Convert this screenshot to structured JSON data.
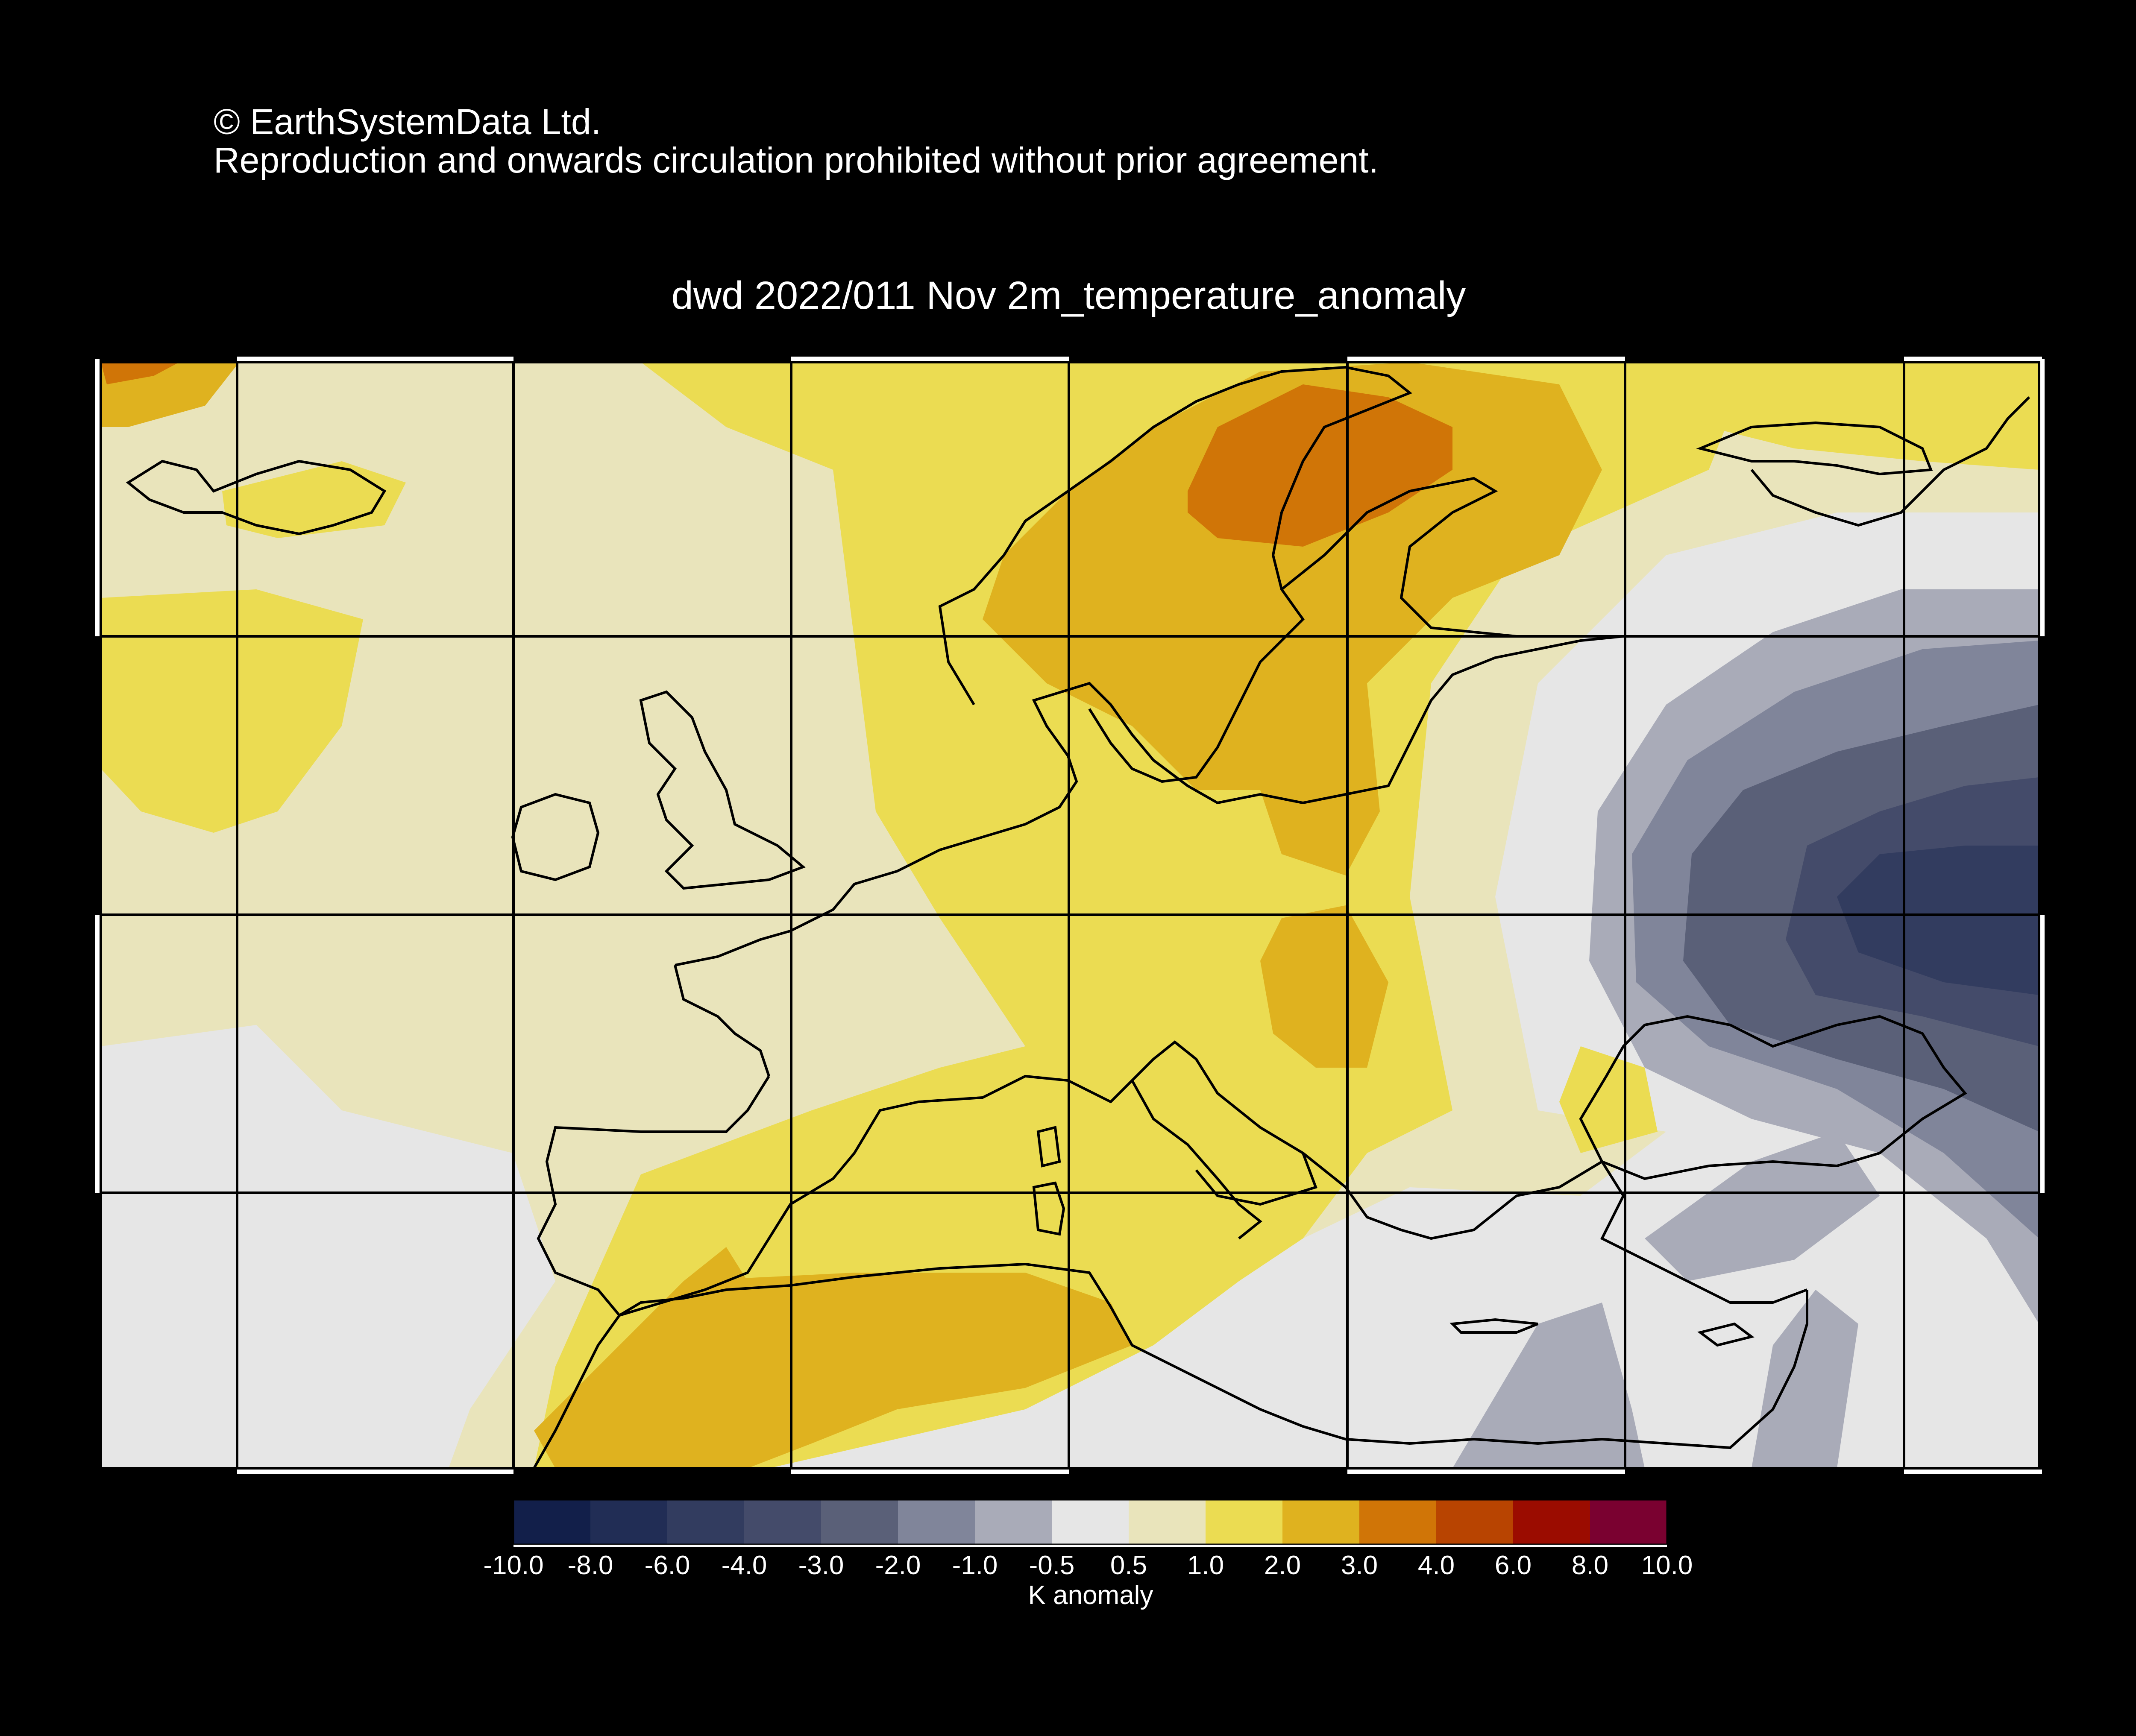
{
  "copyright": {
    "line1": "© EarthSystemData Ltd.",
    "line2": "Reproduction and onwards circulation prohibited without prior agreement."
  },
  "map": {
    "title": "dwd 2022/011 Nov 2m_temperature_anomaly",
    "region": "Europe",
    "variable": "2m temperature anomaly",
    "grid": true
  },
  "colorbar": {
    "title": "K anomaly",
    "tick_labels": [
      "-10.0",
      "-8.0",
      "-6.0",
      "-4.0",
      "-3.0",
      "-2.0",
      "-1.0",
      "-0.5",
      "0.5",
      "1.0",
      "2.0",
      "3.0",
      "4.0",
      "6.0",
      "8.0",
      "10.0"
    ],
    "colors": [
      "#121f4a",
      "#212d55",
      "#323c5f",
      "#444b6a",
      "#5a6078",
      "#80859a",
      "#a9abb8",
      "#e6e6e6",
      "#e9e4bb",
      "#ebdc52",
      "#dfb21f",
      "#d07507",
      "#b84401",
      "#9b0c00",
      "#7a0130"
    ]
  },
  "anomaly_colors": {
    "warm_strong": "#d07507",
    "warm": "#dfb21f",
    "mild": "#ebdc52",
    "slight": "#e9e4bb",
    "neutral": "#e6e6e6",
    "cool_slight": "#a9abb8",
    "cool": "#80859a",
    "cold": "#5a6078",
    "colder": "#444b6a",
    "coldest": "#323c5f"
  }
}
